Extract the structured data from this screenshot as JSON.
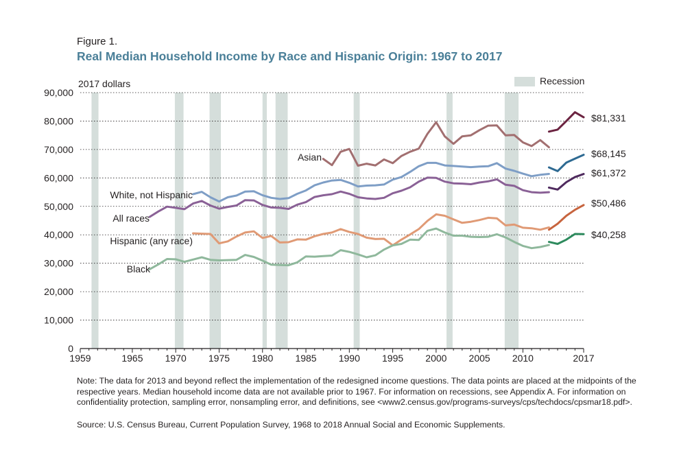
{
  "figure": {
    "label": "Figure 1.",
    "title": "Real Median Household Income by Race and Hispanic Origin: 1967 to 2017",
    "unit": "2017 dollars"
  },
  "colors": {
    "recession": "#d5dedb",
    "axis": "#231f20",
    "grid": "#231f20"
  },
  "chart_data": {
    "type": "line",
    "title": "Real Median Household Income by Race and Hispanic Origin: 1967 to 2017",
    "ylabel": "2017 dollars",
    "ylim": [
      0,
      90000
    ],
    "yticks": [
      0,
      10000,
      20000,
      30000,
      40000,
      50000,
      60000,
      70000,
      80000,
      90000
    ],
    "ytick_labels": [
      "0",
      "10,000",
      "20,000",
      "30,000",
      "40,000",
      "50,000",
      "60,000",
      "70,000",
      "80,000",
      "90,000"
    ],
    "xlim": [
      1959,
      2017
    ],
    "xticks": [
      1959,
      1965,
      1970,
      1975,
      1980,
      1985,
      1990,
      1995,
      2000,
      2005,
      2010,
      2017
    ],
    "xtick_labels": [
      "1959",
      "1965",
      "1970",
      "1975",
      "1980",
      "1985",
      "1990",
      "1995",
      "2000",
      "2005",
      "2010",
      "2017"
    ],
    "grid": true,
    "legend": {
      "label": "Recession",
      "placement": "top-right"
    },
    "recessions": [
      [
        1960.3,
        1961.1
      ],
      [
        1969.9,
        1970.9
      ],
      [
        1973.9,
        1975.2
      ],
      [
        1980.0,
        1980.5
      ],
      [
        1981.5,
        1982.9
      ],
      [
        1990.5,
        1991.2
      ],
      [
        2001.2,
        2001.9
      ],
      [
        2007.9,
        2009.5
      ]
    ],
    "series": [
      {
        "name": "Asian",
        "label": "Asian",
        "color": "#a26f70",
        "values": [
          [
            1987,
            66700
          ],
          [
            1988,
            64500
          ],
          [
            1989,
            69200
          ],
          [
            1990,
            70200
          ],
          [
            1991,
            64300
          ],
          [
            1992,
            65000
          ],
          [
            1993,
            64400
          ],
          [
            1994,
            66500
          ],
          [
            1995,
            65200
          ],
          [
            1996,
            67700
          ],
          [
            1997,
            69200
          ],
          [
            1998,
            70300
          ],
          [
            1999,
            75500
          ],
          [
            2000,
            79600
          ],
          [
            2001,
            74600
          ],
          [
            2002,
            72000
          ],
          [
            2003,
            74600
          ],
          [
            2004,
            75000
          ],
          [
            2005,
            76800
          ],
          [
            2006,
            78400
          ],
          [
            2007,
            78500
          ],
          [
            2008,
            75000
          ],
          [
            2009,
            75100
          ],
          [
            2010,
            72500
          ],
          [
            2011,
            71200
          ],
          [
            2012,
            73300
          ],
          [
            2013,
            70800
          ]
        ],
        "values2": [
          [
            2013,
            76300
          ],
          [
            2014,
            77000
          ],
          [
            2015,
            80000
          ],
          [
            2016,
            83100
          ],
          [
            2017,
            81331
          ]
        ],
        "end_label": "$81,331",
        "color2": "#6b2340"
      },
      {
        "name": "White, not Hispanic",
        "label": "White, not Hispanic",
        "color": "#7e9ec6",
        "values": [
          [
            1972,
            54300
          ],
          [
            1973,
            55100
          ],
          [
            1974,
            53200
          ],
          [
            1975,
            51700
          ],
          [
            1976,
            53200
          ],
          [
            1977,
            53800
          ],
          [
            1978,
            55200
          ],
          [
            1979,
            55300
          ],
          [
            1980,
            53900
          ],
          [
            1981,
            53000
          ],
          [
            1982,
            52600
          ],
          [
            1983,
            52900
          ],
          [
            1984,
            54400
          ],
          [
            1985,
            55600
          ],
          [
            1986,
            57400
          ],
          [
            1987,
            58400
          ],
          [
            1988,
            59100
          ],
          [
            1989,
            59300
          ],
          [
            1990,
            58300
          ],
          [
            1991,
            57000
          ],
          [
            1992,
            57300
          ],
          [
            1993,
            57400
          ],
          [
            1994,
            57700
          ],
          [
            1995,
            59400
          ],
          [
            1996,
            60300
          ],
          [
            1997,
            62100
          ],
          [
            1998,
            64100
          ],
          [
            1999,
            65300
          ],
          [
            2000,
            65300
          ],
          [
            2001,
            64400
          ],
          [
            2002,
            64200
          ],
          [
            2003,
            64000
          ],
          [
            2004,
            63800
          ],
          [
            2005,
            64000
          ],
          [
            2006,
            64100
          ],
          [
            2007,
            65200
          ],
          [
            2008,
            63300
          ],
          [
            2009,
            62500
          ],
          [
            2010,
            61500
          ],
          [
            2011,
            60600
          ],
          [
            2012,
            61100
          ],
          [
            2013,
            61400
          ]
        ],
        "values2": [
          [
            2013,
            63700
          ],
          [
            2014,
            62400
          ],
          [
            2015,
            65400
          ],
          [
            2016,
            66800
          ],
          [
            2017,
            68145
          ]
        ],
        "end_label": "$68,145",
        "color2": "#2e6a92"
      },
      {
        "name": "All races",
        "label": "All races",
        "color": "#8a6196",
        "values": [
          [
            1967,
            46300
          ],
          [
            1968,
            48200
          ],
          [
            1969,
            49900
          ],
          [
            1970,
            49500
          ],
          [
            1971,
            49000
          ],
          [
            1972,
            51000
          ],
          [
            1973,
            51900
          ],
          [
            1974,
            50300
          ],
          [
            1975,
            49200
          ],
          [
            1976,
            49800
          ],
          [
            1977,
            50300
          ],
          [
            1978,
            52200
          ],
          [
            1979,
            52100
          ],
          [
            1980,
            50500
          ],
          [
            1981,
            49600
          ],
          [
            1982,
            49500
          ],
          [
            1983,
            49100
          ],
          [
            1984,
            50600
          ],
          [
            1985,
            51500
          ],
          [
            1986,
            53300
          ],
          [
            1987,
            53900
          ],
          [
            1988,
            54300
          ],
          [
            1989,
            55200
          ],
          [
            1990,
            54400
          ],
          [
            1991,
            53200
          ],
          [
            1992,
            52800
          ],
          [
            1993,
            52600
          ],
          [
            1994,
            53000
          ],
          [
            1995,
            54600
          ],
          [
            1996,
            55500
          ],
          [
            1997,
            56700
          ],
          [
            1998,
            58700
          ],
          [
            1999,
            60100
          ],
          [
            2000,
            60000
          ],
          [
            2001,
            58700
          ],
          [
            2002,
            58100
          ],
          [
            2003,
            58000
          ],
          [
            2004,
            57800
          ],
          [
            2005,
            58400
          ],
          [
            2006,
            58800
          ],
          [
            2007,
            59500
          ],
          [
            2008,
            57600
          ],
          [
            2009,
            57200
          ],
          [
            2010,
            55700
          ],
          [
            2011,
            55000
          ],
          [
            2012,
            54800
          ],
          [
            2013,
            55000
          ]
        ],
        "values2": [
          [
            2013,
            56600
          ],
          [
            2014,
            55900
          ],
          [
            2015,
            58500
          ],
          [
            2016,
            60300
          ],
          [
            2017,
            61372
          ]
        ],
        "end_label": "$61,372",
        "color2": "#4f2a5e"
      },
      {
        "name": "Hispanic (any race)",
        "label": "Hispanic (any race)",
        "color": "#e09a75",
        "values": [
          [
            1972,
            40500
          ],
          [
            1973,
            40400
          ],
          [
            1974,
            40300
          ],
          [
            1975,
            37000
          ],
          [
            1976,
            37700
          ],
          [
            1977,
            39400
          ],
          [
            1978,
            40800
          ],
          [
            1979,
            41200
          ],
          [
            1980,
            38900
          ],
          [
            1981,
            39600
          ],
          [
            1982,
            37300
          ],
          [
            1983,
            37400
          ],
          [
            1984,
            38400
          ],
          [
            1985,
            38300
          ],
          [
            1986,
            39500
          ],
          [
            1987,
            40300
          ],
          [
            1988,
            40800
          ],
          [
            1989,
            42000
          ],
          [
            1990,
            41000
          ],
          [
            1991,
            40300
          ],
          [
            1992,
            39000
          ],
          [
            1993,
            38500
          ],
          [
            1994,
            38600
          ],
          [
            1995,
            36300
          ],
          [
            1996,
            38300
          ],
          [
            1997,
            40100
          ],
          [
            1998,
            42000
          ],
          [
            1999,
            44900
          ],
          [
            2000,
            47200
          ],
          [
            2001,
            46700
          ],
          [
            2002,
            45400
          ],
          [
            2003,
            44200
          ],
          [
            2004,
            44600
          ],
          [
            2005,
            45200
          ],
          [
            2006,
            46000
          ],
          [
            2007,
            45800
          ],
          [
            2008,
            43300
          ],
          [
            2009,
            43600
          ],
          [
            2010,
            42500
          ],
          [
            2011,
            42300
          ],
          [
            2012,
            41800
          ],
          [
            2013,
            42600
          ]
        ],
        "values2": [
          [
            2013,
            41800
          ],
          [
            2014,
            43900
          ],
          [
            2015,
            46700
          ],
          [
            2016,
            48800
          ],
          [
            2017,
            50486
          ]
        ],
        "end_label": "$50,486",
        "color2": "#c7643e"
      },
      {
        "name": "Black",
        "label": "Black",
        "color": "#8fb89c",
        "values": [
          [
            1967,
            27900
          ],
          [
            1968,
            29600
          ],
          [
            1969,
            31500
          ],
          [
            1970,
            31400
          ],
          [
            1971,
            30500
          ],
          [
            1972,
            31300
          ],
          [
            1973,
            32100
          ],
          [
            1974,
            31200
          ],
          [
            1975,
            31000
          ],
          [
            1976,
            31100
          ],
          [
            1977,
            31200
          ],
          [
            1978,
            32900
          ],
          [
            1979,
            32200
          ],
          [
            1980,
            30900
          ],
          [
            1981,
            29500
          ],
          [
            1982,
            29400
          ],
          [
            1983,
            29300
          ],
          [
            1984,
            30300
          ],
          [
            1985,
            32400
          ],
          [
            1986,
            32300
          ],
          [
            1987,
            32500
          ],
          [
            1988,
            32700
          ],
          [
            1989,
            34600
          ],
          [
            1990,
            34000
          ],
          [
            1991,
            33100
          ],
          [
            1992,
            32100
          ],
          [
            1993,
            32800
          ],
          [
            1994,
            34800
          ],
          [
            1995,
            36300
          ],
          [
            1996,
            36800
          ],
          [
            1997,
            38300
          ],
          [
            1998,
            38200
          ],
          [
            1999,
            41400
          ],
          [
            2000,
            42200
          ],
          [
            2001,
            40800
          ],
          [
            2002,
            39700
          ],
          [
            2003,
            39700
          ],
          [
            2004,
            39300
          ],
          [
            2005,
            39200
          ],
          [
            2006,
            39300
          ],
          [
            2007,
            40200
          ],
          [
            2008,
            39100
          ],
          [
            2009,
            37500
          ],
          [
            2010,
            36100
          ],
          [
            2011,
            35300
          ],
          [
            2012,
            35700
          ],
          [
            2013,
            36400
          ]
        ],
        "values2": [
          [
            2013,
            37500
          ],
          [
            2014,
            36800
          ],
          [
            2015,
            38300
          ],
          [
            2016,
            40300
          ],
          [
            2017,
            40258
          ]
        ],
        "end_label": "$40,258",
        "color2": "#2d8a5d"
      }
    ]
  },
  "note": "Note: The data for 2013 and beyond reflect the implementation of the redesigned income questions. The data points are placed at the midpoints of the respective years. Median household income data are not available prior to 1967. For information on recessions, see Appendix A. For information on confidentiality protection, sampling error, nonsampling error, and definitions, see <www2.census.gov/programs-surveys/cps/techdocs/cpsmar18.pdf>.",
  "source": "Source: U.S. Census Bureau, Current Population Survey, 1968 to 2018 Annual Social and Economic Supplements."
}
